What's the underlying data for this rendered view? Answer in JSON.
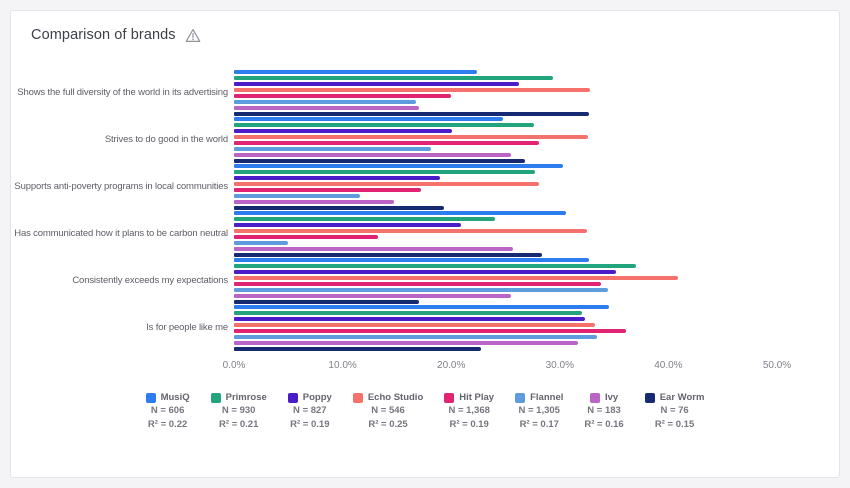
{
  "header": {
    "title": "Comparison of brands",
    "warning_icon": "warning-triangle"
  },
  "colors": {
    "page_background": "#f4f4f6",
    "card_background": "#ffffff",
    "card_border": "#e2e3e7",
    "title_text": "#3f414a",
    "label_text": "#5d5e66",
    "axis_text": "#80818a",
    "warning_icon": "#92959c"
  },
  "chart_data": {
    "type": "bar",
    "orientation": "horizontal",
    "title": "Comparison of brands",
    "xlabel": "",
    "ylabel": "",
    "xlim": [
      0,
      50
    ],
    "x_ticks": [
      "0.0%",
      "10.0%",
      "20.0%",
      "30.0%",
      "40.0%",
      "50.0%"
    ],
    "grid": false,
    "legend_position": "bottom",
    "categories": [
      "Shows the full diversity of the world in its advertising",
      "Strives to do good in the world",
      "Supports anti-poverty programs in local communities",
      "Has communicated how it plans to be carbon neutral",
      "Consistently exceeds my expectations",
      "Is for people like me"
    ],
    "series": [
      {
        "name": "MusiQ",
        "color": "#2E7DEF",
        "n_label": "N = 606",
        "r2_label": "R² = 0.22",
        "values": [
          22.4,
          24.8,
          30.3,
          30.6,
          32.7,
          34.5
        ]
      },
      {
        "name": "Primrose",
        "color": "#22A47D",
        "n_label": "N = 930",
        "r2_label": "R² = 0.21",
        "values": [
          29.4,
          27.6,
          27.7,
          24.0,
          37.0,
          32.0
        ]
      },
      {
        "name": "Poppy",
        "color": "#4A1DC8",
        "n_label": "N = 827",
        "r2_label": "R² = 0.19",
        "values": [
          26.2,
          20.1,
          19.0,
          20.9,
          35.2,
          32.3
        ]
      },
      {
        "name": "Echo Studio",
        "color": "#F4716C",
        "n_label": "N = 546",
        "r2_label": "R² = 0.25",
        "values": [
          32.8,
          32.6,
          28.1,
          32.5,
          40.9,
          33.2
        ]
      },
      {
        "name": "Hit Play",
        "color": "#E02473",
        "n_label": "N = 1,368",
        "r2_label": "R² = 0.19",
        "values": [
          20.0,
          28.1,
          17.2,
          13.3,
          33.8,
          36.1
        ]
      },
      {
        "name": "Flannel",
        "color": "#5E9CDE",
        "n_label": "N = 1,305",
        "r2_label": "R² = 0.17",
        "values": [
          16.8,
          18.1,
          11.6,
          5.0,
          34.4,
          33.4
        ]
      },
      {
        "name": "Ivy",
        "color": "#BA64C6",
        "n_label": "N = 183",
        "r2_label": "R² = 0.16",
        "values": [
          17.0,
          25.5,
          14.7,
          25.7,
          25.5,
          31.7
        ]
      },
      {
        "name": "Ear Worm",
        "color": "#152A70",
        "n_label": "N = 76",
        "r2_label": "R² = 0.15",
        "values": [
          32.7,
          26.8,
          19.3,
          28.4,
          17.0,
          22.7
        ]
      }
    ]
  }
}
